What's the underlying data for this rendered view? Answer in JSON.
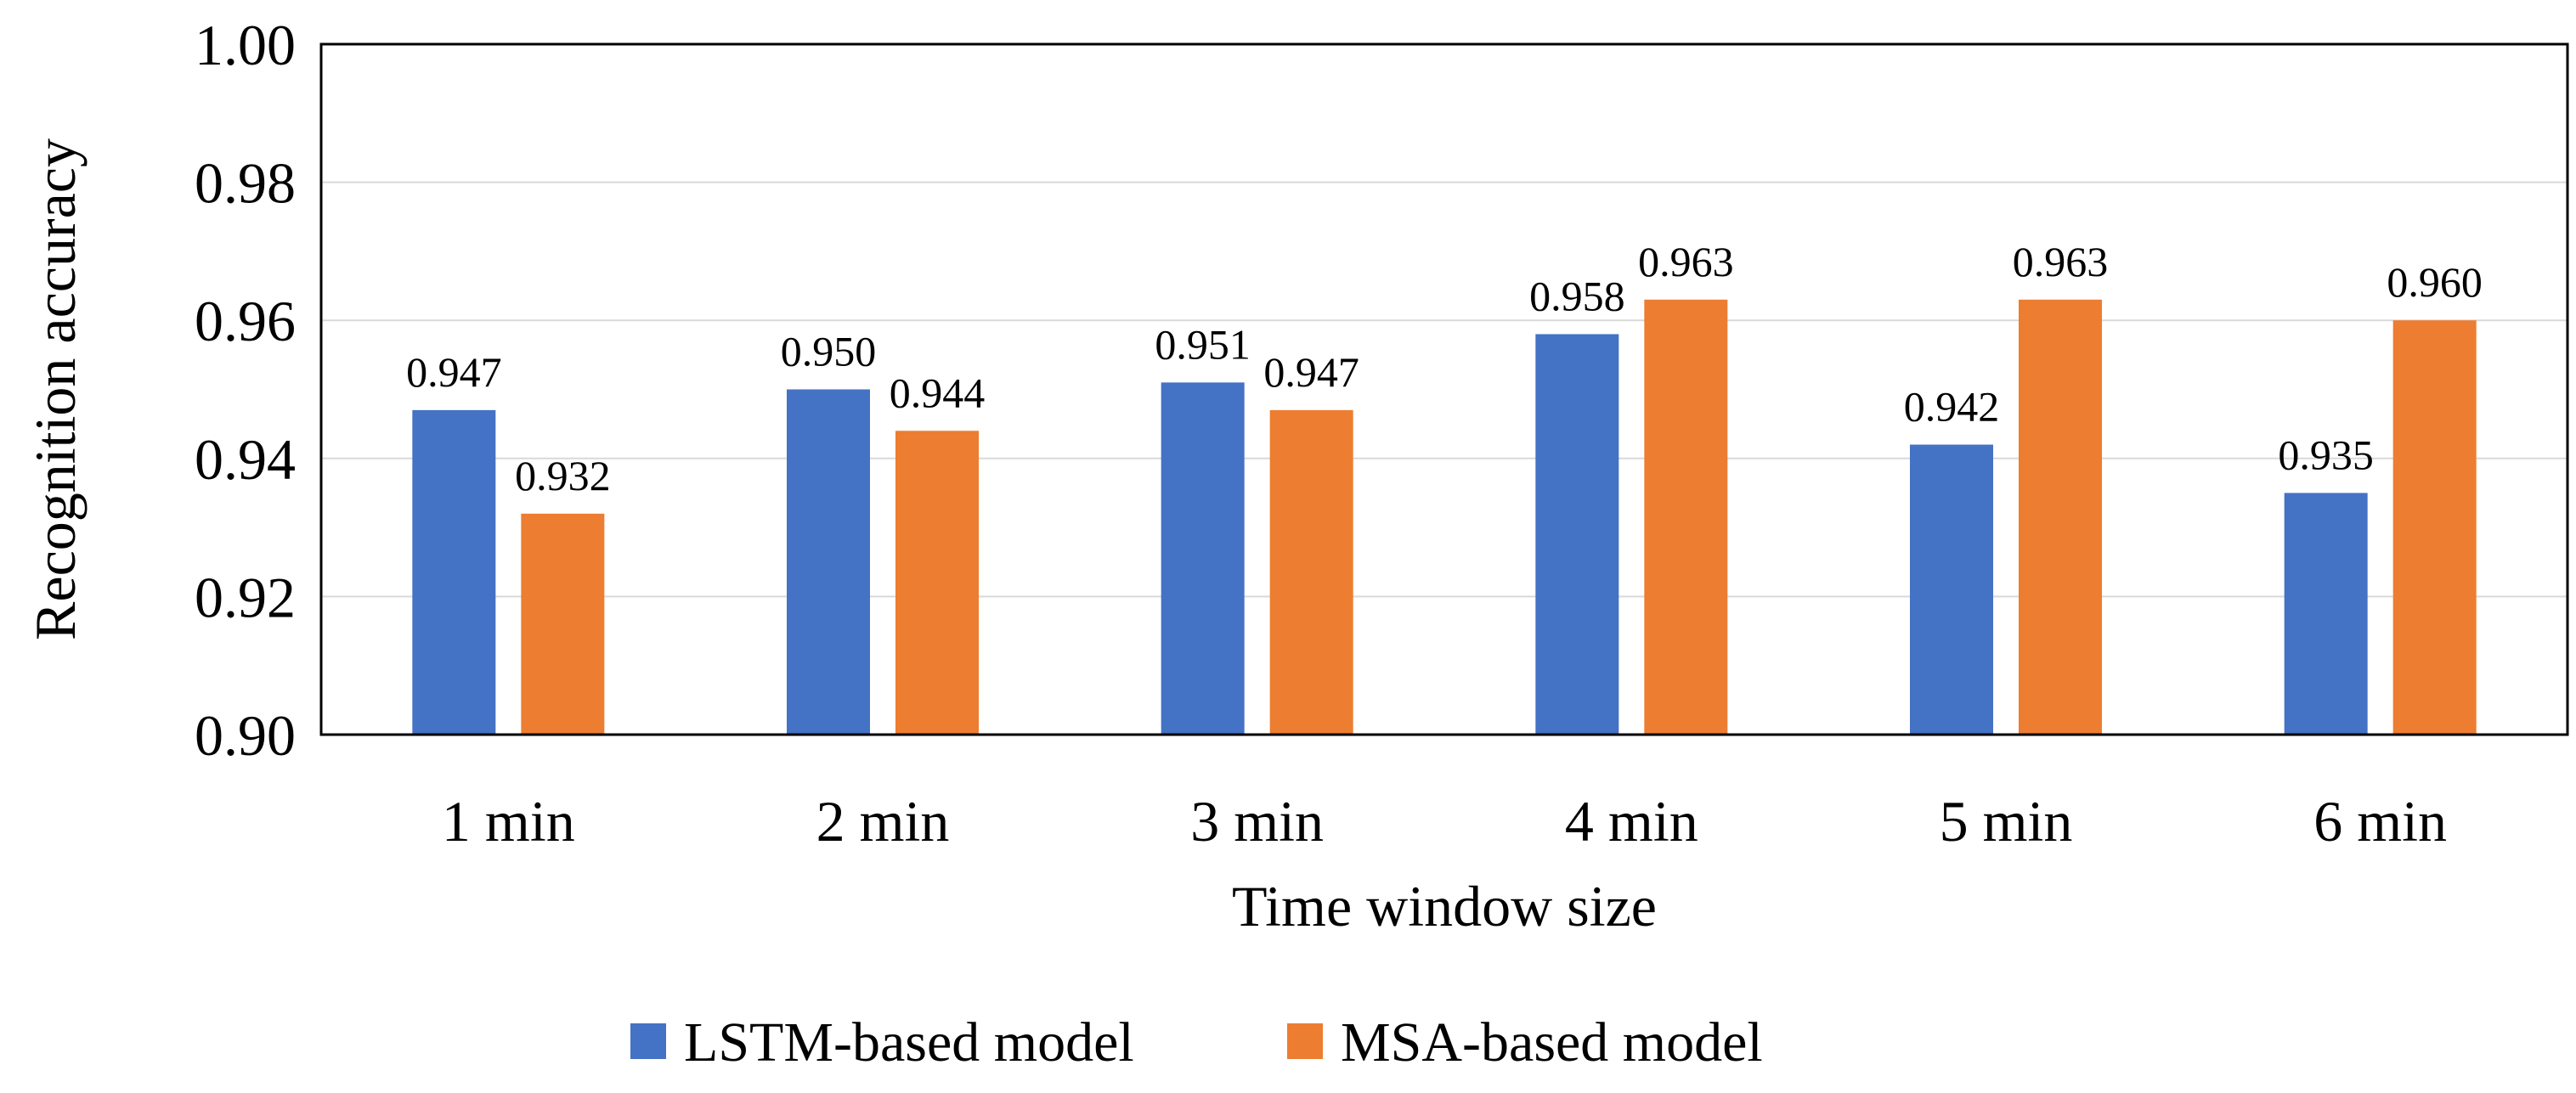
{
  "chart_data": {
    "type": "bar",
    "title": "",
    "xlabel": "Time window size",
    "ylabel": "Recognition accuracy",
    "categories": [
      "1 min",
      "2 min",
      "3 min",
      "4 min",
      "5 min",
      "6 min"
    ],
    "series": [
      {
        "name": "LSTM-based model",
        "color": "#4472C4",
        "values": [
          0.947,
          0.95,
          0.951,
          0.958,
          0.942,
          0.935
        ],
        "labels": [
          "0.947",
          "0.950",
          "0.951",
          "0.958",
          "0.942",
          "0.935"
        ]
      },
      {
        "name": "MSA-based model",
        "color": "#ED7D31",
        "values": [
          0.932,
          0.944,
          0.947,
          0.963,
          0.963,
          0.96
        ],
        "labels": [
          "0.932",
          "0.944",
          "0.947",
          "0.963",
          "0.963",
          "0.960"
        ]
      }
    ],
    "ylim": [
      0.9,
      1.0
    ],
    "yticks": [
      "0.90",
      "0.92",
      "0.94",
      "0.96",
      "0.98",
      "1.00"
    ],
    "grid": true,
    "legend": "bottom-center",
    "gridColor": "#D9D9D9"
  }
}
